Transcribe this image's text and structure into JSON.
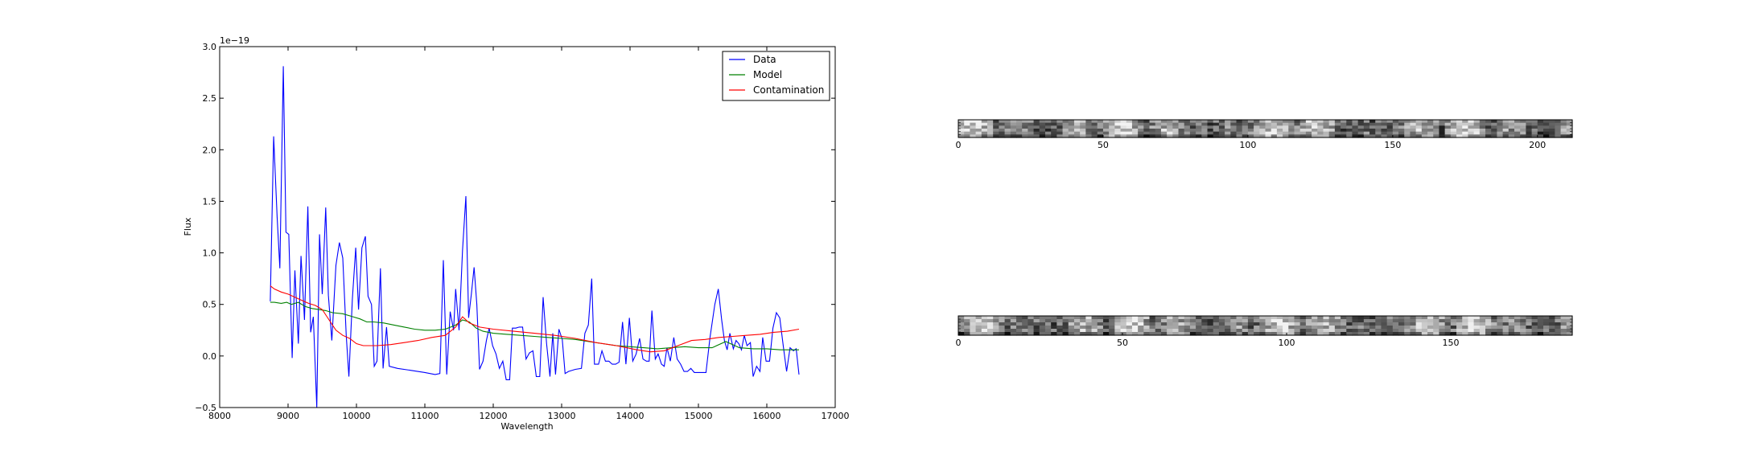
{
  "chart_data": [
    {
      "type": "line",
      "title": "",
      "xlabel": "Wavelength",
      "ylabel": "Flux",
      "offset_text": "1e−19",
      "xlim": [
        8000,
        17000
      ],
      "ylim": [
        -0.5,
        3.0
      ],
      "x_ticks": [
        8000,
        9000,
        10000,
        11000,
        12000,
        13000,
        14000,
        15000,
        16000,
        17000
      ],
      "y_ticks": [
        -0.5,
        0.0,
        0.5,
        1.0,
        1.5,
        2.0,
        2.5,
        3.0
      ],
      "x_tick_labels": [
        "8000",
        "9000",
        "10000",
        "11000",
        "12000",
        "13000",
        "14000",
        "15000",
        "16000",
        "17000"
      ],
      "y_tick_labels": [
        "−0.5",
        "0.0",
        "0.5",
        "1.0",
        "1.5",
        "2.0",
        "2.5",
        "3.0"
      ],
      "legend_position": "top-right",
      "grid": false,
      "series": [
        {
          "name": "Data",
          "color": "#0000ff",
          "points": [
            [
              8740,
              0.53
            ],
            [
              8790,
              2.13
            ],
            [
              8840,
              1.35
            ],
            [
              8880,
              0.85
            ],
            [
              8930,
              2.81
            ],
            [
              8970,
              1.2
            ],
            [
              9010,
              1.18
            ],
            [
              9060,
              -0.02
            ],
            [
              9100,
              0.83
            ],
            [
              9150,
              0.12
            ],
            [
              9190,
              0.97
            ],
            [
              9240,
              0.35
            ],
            [
              9290,
              1.45
            ],
            [
              9330,
              0.23
            ],
            [
              9370,
              0.38
            ],
            [
              9420,
              -0.5
            ],
            [
              9460,
              1.18
            ],
            [
              9500,
              0.6
            ],
            [
              9550,
              1.44
            ],
            [
              9590,
              0.59
            ],
            [
              9640,
              0.15
            ],
            [
              9700,
              0.88
            ],
            [
              9750,
              1.1
            ],
            [
              9800,
              0.95
            ],
            [
              9850,
              0.2
            ],
            [
              9890,
              -0.2
            ],
            [
              9940,
              0.55
            ],
            [
              9990,
              1.05
            ],
            [
              10030,
              0.45
            ],
            [
              10080,
              1.05
            ],
            [
              10130,
              1.16
            ],
            [
              10170,
              0.58
            ],
            [
              10220,
              0.5
            ],
            [
              10260,
              -0.1
            ],
            [
              10300,
              -0.05
            ],
            [
              10350,
              0.85
            ],
            [
              10390,
              -0.12
            ],
            [
              10440,
              0.28
            ],
            [
              10480,
              -0.1
            ],
            [
              10600,
              -0.12
            ],
            [
              10800,
              -0.14
            ],
            [
              11000,
              -0.16
            ],
            [
              11150,
              -0.18
            ],
            [
              11220,
              -0.17
            ],
            [
              11270,
              0.93
            ],
            [
              11320,
              -0.18
            ],
            [
              11370,
              0.43
            ],
            [
              11420,
              0.25
            ],
            [
              11450,
              0.65
            ],
            [
              11500,
              0.25
            ],
            [
              11550,
              1.02
            ],
            [
              11600,
              1.55
            ],
            [
              11640,
              0.37
            ],
            [
              11680,
              0.6
            ],
            [
              11720,
              0.86
            ],
            [
              11760,
              0.5
            ],
            [
              11800,
              -0.13
            ],
            [
              11850,
              -0.05
            ],
            [
              11900,
              0.15
            ],
            [
              11940,
              0.27
            ],
            [
              11990,
              0.1
            ],
            [
              12040,
              0.02
            ],
            [
              12090,
              -0.12
            ],
            [
              12140,
              -0.05
            ],
            [
              12190,
              -0.23
            ],
            [
              12240,
              -0.23
            ],
            [
              12280,
              0.27
            ],
            [
              12330,
              0.27
            ],
            [
              12380,
              0.28
            ],
            [
              12430,
              0.28
            ],
            [
              12480,
              -0.03
            ],
            [
              12530,
              0.03
            ],
            [
              12580,
              0.05
            ],
            [
              12630,
              -0.2
            ],
            [
              12680,
              -0.2
            ],
            [
              12730,
              0.57
            ],
            [
              12780,
              0.12
            ],
            [
              12830,
              -0.2
            ],
            [
              12870,
              0.22
            ],
            [
              12910,
              -0.18
            ],
            [
              12960,
              0.26
            ],
            [
              13010,
              0.16
            ],
            [
              13050,
              -0.17
            ],
            [
              13100,
              -0.15
            ],
            [
              13200,
              -0.13
            ],
            [
              13290,
              -0.12
            ],
            [
              13340,
              0.22
            ],
            [
              13390,
              0.3
            ],
            [
              13440,
              0.75
            ],
            [
              13480,
              -0.08
            ],
            [
              13540,
              -0.08
            ],
            [
              13590,
              0.05
            ],
            [
              13640,
              -0.05
            ],
            [
              13690,
              -0.05
            ],
            [
              13740,
              -0.08
            ],
            [
              13790,
              -0.08
            ],
            [
              13840,
              -0.06
            ],
            [
              13890,
              0.33
            ],
            [
              13940,
              -0.08
            ],
            [
              13990,
              0.37
            ],
            [
              14040,
              -0.05
            ],
            [
              14090,
              0.02
            ],
            [
              14140,
              0.17
            ],
            [
              14190,
              -0.03
            ],
            [
              14240,
              -0.05
            ],
            [
              14280,
              -0.05
            ],
            [
              14320,
              0.44
            ],
            [
              14370,
              -0.03
            ],
            [
              14410,
              0.02
            ],
            [
              14460,
              -0.08
            ],
            [
              14500,
              -0.1
            ],
            [
              14540,
              0.08
            ],
            [
              14590,
              -0.05
            ],
            [
              14640,
              0.18
            ],
            [
              14690,
              -0.03
            ],
            [
              14740,
              -0.08
            ],
            [
              14790,
              -0.15
            ],
            [
              14840,
              -0.15
            ],
            [
              14890,
              -0.12
            ],
            [
              14940,
              -0.16
            ],
            [
              14990,
              -0.16
            ],
            [
              15050,
              -0.16
            ],
            [
              15110,
              -0.16
            ],
            [
              15170,
              0.18
            ],
            [
              15240,
              0.5
            ],
            [
              15290,
              0.65
            ],
            [
              15340,
              0.35
            ],
            [
              15380,
              0.15
            ],
            [
              15420,
              0.06
            ],
            [
              15460,
              0.22
            ],
            [
              15510,
              0.07
            ],
            [
              15550,
              0.15
            ],
            [
              15590,
              0.12
            ],
            [
              15630,
              0.06
            ],
            [
              15670,
              0.2
            ],
            [
              15710,
              0.1
            ],
            [
              15760,
              0.13
            ],
            [
              15800,
              -0.2
            ],
            [
              15850,
              -0.1
            ],
            [
              15900,
              -0.15
            ],
            [
              15940,
              0.18
            ],
            [
              15990,
              -0.05
            ],
            [
              16040,
              -0.05
            ],
            [
              16090,
              0.27
            ],
            [
              16140,
              0.42
            ],
            [
              16190,
              0.37
            ],
            [
              16240,
              0.1
            ],
            [
              16290,
              -0.15
            ],
            [
              16340,
              0.08
            ],
            [
              16390,
              0.05
            ],
            [
              16430,
              0.07
            ],
            [
              16470,
              -0.18
            ]
          ]
        },
        {
          "name": "Model",
          "color": "#008000",
          "points": [
            [
              8740,
              0.52
            ],
            [
              8800,
              0.52
            ],
            [
              8900,
              0.51
            ],
            [
              8980,
              0.52
            ],
            [
              9050,
              0.5
            ],
            [
              9150,
              0.52
            ],
            [
              9250,
              0.48
            ],
            [
              9350,
              0.46
            ],
            [
              9450,
              0.45
            ],
            [
              9550,
              0.44
            ],
            [
              9650,
              0.42
            ],
            [
              9800,
              0.41
            ],
            [
              9950,
              0.38
            ],
            [
              10050,
              0.36
            ],
            [
              10150,
              0.33
            ],
            [
              10250,
              0.33
            ],
            [
              10400,
              0.32
            ],
            [
              10550,
              0.3
            ],
            [
              10700,
              0.28
            ],
            [
              10850,
              0.26
            ],
            [
              11000,
              0.25
            ],
            [
              11150,
              0.25
            ],
            [
              11300,
              0.26
            ],
            [
              11450,
              0.3
            ],
            [
              11550,
              0.35
            ],
            [
              11650,
              0.33
            ],
            [
              11750,
              0.27
            ],
            [
              11850,
              0.24
            ],
            [
              12000,
              0.22
            ],
            [
              12200,
              0.21
            ],
            [
              12400,
              0.2
            ],
            [
              12600,
              0.19
            ],
            [
              12800,
              0.18
            ],
            [
              13000,
              0.17
            ],
            [
              13200,
              0.16
            ],
            [
              13400,
              0.14
            ],
            [
              13600,
              0.12
            ],
            [
              13800,
              0.1
            ],
            [
              14000,
              0.09
            ],
            [
              14200,
              0.08
            ],
            [
              14400,
              0.07
            ],
            [
              14600,
              0.08
            ],
            [
              14800,
              0.09
            ],
            [
              15000,
              0.08
            ],
            [
              15200,
              0.08
            ],
            [
              15400,
              0.14
            ],
            [
              15600,
              0.08
            ],
            [
              15800,
              0.07
            ],
            [
              16000,
              0.07
            ],
            [
              16200,
              0.06
            ],
            [
              16470,
              0.06
            ]
          ]
        },
        {
          "name": "Contamination",
          "color": "#ff0000",
          "points": [
            [
              8740,
              0.68
            ],
            [
              8800,
              0.65
            ],
            [
              8900,
              0.62
            ],
            [
              9000,
              0.6
            ],
            [
              9100,
              0.57
            ],
            [
              9200,
              0.54
            ],
            [
              9300,
              0.51
            ],
            [
              9400,
              0.49
            ],
            [
              9500,
              0.45
            ],
            [
              9600,
              0.35
            ],
            [
              9700,
              0.25
            ],
            [
              9800,
              0.2
            ],
            [
              9900,
              0.17
            ],
            [
              10000,
              0.12
            ],
            [
              10100,
              0.1
            ],
            [
              10300,
              0.1
            ],
            [
              10500,
              0.11
            ],
            [
              10700,
              0.13
            ],
            [
              10900,
              0.15
            ],
            [
              11100,
              0.18
            ],
            [
              11300,
              0.2
            ],
            [
              11450,
              0.28
            ],
            [
              11550,
              0.38
            ],
            [
              11650,
              0.32
            ],
            [
              11800,
              0.28
            ],
            [
              12000,
              0.26
            ],
            [
              12300,
              0.24
            ],
            [
              12600,
              0.22
            ],
            [
              12900,
              0.2
            ],
            [
              13200,
              0.17
            ],
            [
              13500,
              0.13
            ],
            [
              13800,
              0.1
            ],
            [
              14100,
              0.06
            ],
            [
              14300,
              0.04
            ],
            [
              14500,
              0.05
            ],
            [
              14700,
              0.1
            ],
            [
              14900,
              0.15
            ],
            [
              15100,
              0.16
            ],
            [
              15300,
              0.18
            ],
            [
              15500,
              0.19
            ],
            [
              15700,
              0.2
            ],
            [
              15900,
              0.21
            ],
            [
              16100,
              0.23
            ],
            [
              16300,
              0.24
            ],
            [
              16470,
              0.26
            ]
          ]
        }
      ]
    },
    {
      "type": "heatmap",
      "title": "",
      "colormap": "gray",
      "xlim": [
        0,
        212
      ],
      "x_ticks": [
        0,
        50,
        100,
        150,
        200
      ],
      "x_tick_labels": [
        "0",
        "50",
        "100",
        "150",
        "200"
      ],
      "rows": 6
    },
    {
      "type": "heatmap",
      "title": "",
      "colormap": "gray",
      "xlim": [
        0,
        187
      ],
      "x_ticks": [
        0,
        50,
        100,
        150
      ],
      "x_tick_labels": [
        "0",
        "50",
        "100",
        "150"
      ],
      "rows": 6
    }
  ]
}
